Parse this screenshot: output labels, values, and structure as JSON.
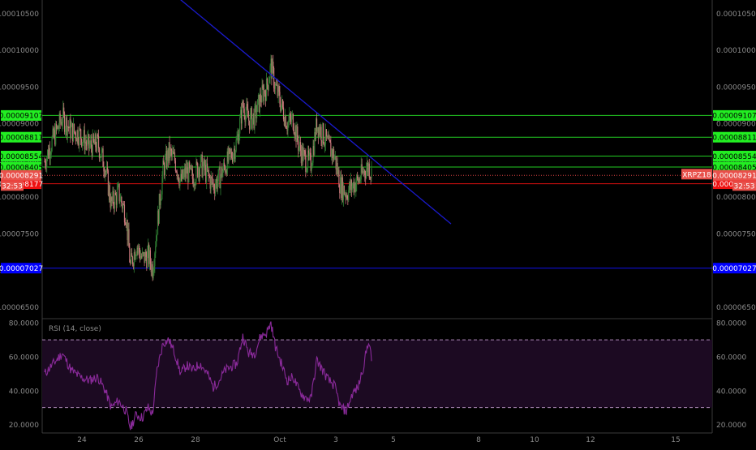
{
  "colors": {
    "background": "#000000",
    "axis_text": "#8a8a8a",
    "frame": "#3a3a3a",
    "up_candle": "#2e7d32",
    "down_candle": "#c8767a",
    "trendline": "#1a1acc",
    "support": "#1111ee",
    "green_level": "#22cc22",
    "red_level": "#dd1111",
    "rsi_line": "#8a2a9a",
    "rsi_band": "#1c0a22",
    "rsi_band_line": "#b08cbc"
  },
  "rsi_label": "RSI (14, close)",
  "chart_data": [
    {
      "type": "candlestick",
      "symbol": "XRPZ18",
      "x_ticks": [
        "24",
        "26",
        "28",
        "Oct",
        "3",
        "5",
        "8",
        "10",
        "12",
        "15"
      ],
      "y_ticks": [
        "0.00006500",
        "0.00007000",
        "0.00007500",
        "0.00008000",
        "0.00008500",
        "0.00009000",
        "0.00009500",
        "0.00010000",
        "0.00010500"
      ],
      "ylim": [
        6.35e-05,
        0.0001068
      ],
      "last_price": "0.00008291",
      "countdown": "32:53",
      "horizontal_levels": [
        {
          "value": 9.107e-05,
          "label": "0.00009107",
          "color": "green"
        },
        {
          "value": 8.811e-05,
          "label": "0.00008811",
          "color": "green"
        },
        {
          "value": 8.554e-05,
          "label": "0.00008554",
          "color": "green"
        },
        {
          "value": 8.405e-05,
          "label": "0.00008405",
          "color": "green"
        },
        {
          "value": 8.177e-05,
          "label": "0.00008177",
          "color": "red"
        },
        {
          "value": 7.027e-05,
          "label": "0.00007027",
          "color": "blue"
        }
      ],
      "trendline": {
        "start": [
          "Sep 23",
          0.000108
        ],
        "end": [
          "Oct 7",
          7.63e-05
        ]
      },
      "price_path": [
        [
          0,
          8.48e-05
        ],
        [
          5,
          8.75e-05
        ],
        [
          12,
          9.08e-05
        ],
        [
          18,
          8.9e-05
        ],
        [
          24,
          8.85e-05
        ],
        [
          30,
          8.68e-05
        ],
        [
          36,
          8.72e-05
        ],
        [
          41,
          8.4e-05
        ],
        [
          45,
          7.9e-05
        ],
        [
          50,
          8.05e-05
        ],
        [
          55,
          7.75e-05
        ],
        [
          58,
          7.05e-05
        ],
        [
          62,
          7.35e-05
        ],
        [
          66,
          7.15e-05
        ],
        [
          70,
          7.2e-05
        ],
        [
          73,
          7.02e-05
        ],
        [
          76,
          7.6e-05
        ],
        [
          80,
          8.35e-05
        ],
        [
          84,
          8.6e-05
        ],
        [
          88,
          8.5e-05
        ],
        [
          92,
          8.2e-05
        ],
        [
          96,
          8.35e-05
        ],
        [
          100,
          8.25e-05
        ],
        [
          105,
          8.45e-05
        ],
        [
          110,
          8.3e-05
        ],
        [
          114,
          8.15e-05
        ],
        [
          118,
          8.25e-05
        ],
        [
          122,
          8.42e-05
        ],
        [
          126,
          8.55e-05
        ],
        [
          130,
          8.75e-05
        ],
        [
          134,
          9.25e-05
        ],
        [
          138,
          9.05e-05
        ],
        [
          142,
          9.08e-05
        ],
        [
          146,
          9.35e-05
        ],
        [
          150,
          9.48e-05
        ],
        [
          153,
          9.78e-05
        ],
        [
          156,
          9.5e-05
        ],
        [
          160,
          9.25e-05
        ],
        [
          164,
          9e-05
        ],
        [
          168,
          9.05e-05
        ],
        [
          172,
          8.68e-05
        ],
        [
          176,
          8.5e-05
        ],
        [
          180,
          8.45e-05
        ],
        [
          184,
          9e-05
        ],
        [
          188,
          8.85e-05
        ],
        [
          192,
          8.68e-05
        ],
        [
          196,
          8.55e-05
        ],
        [
          200,
          8.15e-05
        ],
        [
          204,
          8.05e-05
        ],
        [
          208,
          8.15e-05
        ],
        [
          212,
          8.22e-05
        ],
        [
          216,
          8.35e-05
        ],
        [
          219,
          8.42e-05
        ],
        [
          221,
          8.32e-05
        ]
      ]
    },
    {
      "type": "line",
      "name": "RSI (14, close)",
      "y_ticks": [
        "20.0000",
        "40.0000",
        "60.0000",
        "80.0000"
      ],
      "ylim": [
        15,
        82
      ],
      "bands": [
        30,
        70
      ],
      "values": [
        [
          0,
          50
        ],
        [
          5,
          55
        ],
        [
          12,
          62
        ],
        [
          18,
          52
        ],
        [
          24,
          48
        ],
        [
          30,
          46
        ],
        [
          36,
          48
        ],
        [
          41,
          40
        ],
        [
          45,
          30
        ],
        [
          50,
          34
        ],
        [
          55,
          28
        ],
        [
          58,
          18
        ],
        [
          62,
          26
        ],
        [
          66,
          24
        ],
        [
          70,
          30
        ],
        [
          73,
          26
        ],
        [
          76,
          52
        ],
        [
          80,
          68
        ],
        [
          84,
          70
        ],
        [
          88,
          62
        ],
        [
          92,
          50
        ],
        [
          96,
          55
        ],
        [
          100,
          52
        ],
        [
          105,
          56
        ],
        [
          110,
          50
        ],
        [
          114,
          42
        ],
        [
          118,
          46
        ],
        [
          122,
          52
        ],
        [
          126,
          54
        ],
        [
          130,
          56
        ],
        [
          134,
          72
        ],
        [
          138,
          62
        ],
        [
          142,
          62
        ],
        [
          146,
          72
        ],
        [
          150,
          74
        ],
        [
          153,
          80
        ],
        [
          156,
          66
        ],
        [
          160,
          56
        ],
        [
          164,
          46
        ],
        [
          168,
          48
        ],
        [
          172,
          40
        ],
        [
          176,
          36
        ],
        [
          180,
          35
        ],
        [
          184,
          58
        ],
        [
          188,
          52
        ],
        [
          192,
          46
        ],
        [
          196,
          43
        ],
        [
          200,
          30
        ],
        [
          204,
          28
        ],
        [
          208,
          38
        ],
        [
          212,
          42
        ],
        [
          216,
          56
        ],
        [
          219,
          70
        ],
        [
          221,
          58
        ]
      ]
    }
  ]
}
